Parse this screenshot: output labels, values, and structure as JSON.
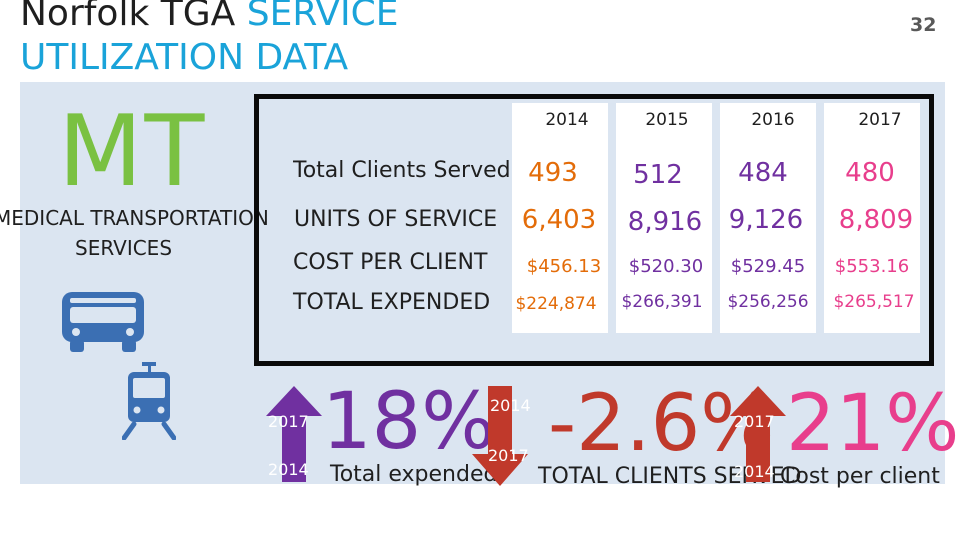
{
  "title": {
    "line1_plain": "Norfolk TGA ",
    "line1_accent": "SERVICE",
    "line2": "UTILIZATION DATA"
  },
  "slide_number": "32",
  "program": {
    "code": "MT",
    "name_line1": "MEDICAL TRANSPORTATION",
    "name_line2": "SERVICES"
  },
  "icons": {
    "bus": "bus-icon",
    "train": "train-icon"
  },
  "table": {
    "years": [
      "2014",
      "2015",
      "2016",
      "2017"
    ],
    "rows": [
      {
        "label": "Total Clients Served",
        "values": [
          "493",
          "512",
          "484",
          "480"
        ]
      },
      {
        "label": "UNITS OF SERVICE",
        "values": [
          "6,403",
          "8,916",
          "9,126",
          "8,809"
        ]
      },
      {
        "label": "COST PER CLIENT",
        "values": [
          "$456.13",
          "$520.30",
          "$529.45",
          "$553.16"
        ]
      },
      {
        "label": "TOTAL EXPENDED",
        "values": [
          "$224,874",
          "$266,391",
          "$256,256",
          "$265,517"
        ]
      }
    ],
    "year_colors": [
      "#e36c09",
      "#7030a0",
      "#7030a0",
      "#e83e8c"
    ]
  },
  "summary": [
    {
      "percent": "18%",
      "caption": "Total expended",
      "direction": "up",
      "from": "2014",
      "to": "2017",
      "color": "#7030a0"
    },
    {
      "percent": "-2.6%",
      "caption": "TOTAL CLIENTS SERVED",
      "direction": "down",
      "from": "2014",
      "to": "2017",
      "color": "#c0392b"
    },
    {
      "percent": "21%",
      "caption": "Cost per client",
      "direction": "up",
      "from": "2014",
      "to": "2017",
      "color": "#e83e8c"
    }
  ],
  "colors": {
    "panel": "#dbe5f1",
    "mt_green": "#7ac142",
    "accent_blue": "#1aa3d9",
    "up_arrow": "#7030a0",
    "down_arrow": "#c0392b",
    "icon_blue": "#3b6fb3"
  }
}
